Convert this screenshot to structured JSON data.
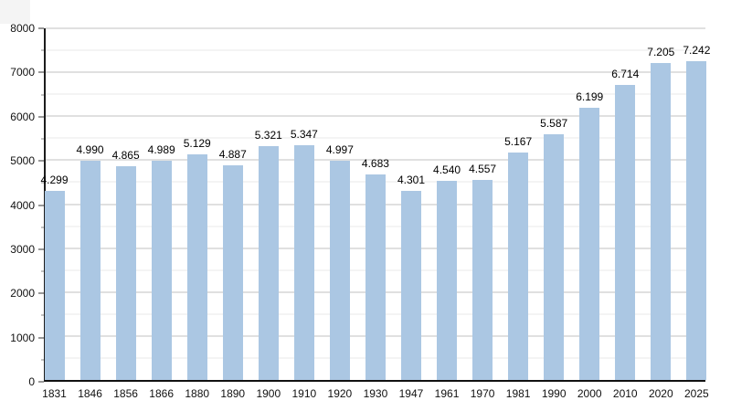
{
  "chart_data": {
    "type": "bar",
    "title": "",
    "xlabel": "",
    "ylabel": "",
    "categories": [
      "1831",
      "1846",
      "1856",
      "1866",
      "1880",
      "1890",
      "1900",
      "1910",
      "1920",
      "1930",
      "1947",
      "1961",
      "1970",
      "1981",
      "1990",
      "2000",
      "2010",
      "2020",
      "2025"
    ],
    "values": [
      4299,
      4990,
      4865,
      4989,
      5129,
      4887,
      5321,
      5347,
      4997,
      4683,
      4301,
      4540,
      4557,
      5167,
      5587,
      6199,
      6714,
      7205,
      7242
    ],
    "bar_labels": [
      "4.299",
      "4.990",
      "4.865",
      "4.989",
      "5.129",
      "4.887",
      "5.321",
      "5.347",
      "4.997",
      "4.683",
      "4.301",
      "4.540",
      "4.557",
      "5.167",
      "5.587",
      "6.199",
      "6.714",
      "7.205",
      "7.242"
    ],
    "ylim": [
      0,
      8000
    ],
    "yticks": [
      0,
      1000,
      2000,
      3000,
      4000,
      5000,
      6000,
      7000,
      8000
    ],
    "ytick_step": 1000,
    "yminor_step": 500,
    "grid": true,
    "legend_position": "none",
    "colors": {
      "bar_fill": "#abc7e3",
      "major_grid": "#c2c2c2",
      "minor_grid": "#eaeaea",
      "axis": "#1c1c1c",
      "text": "#000000"
    }
  }
}
